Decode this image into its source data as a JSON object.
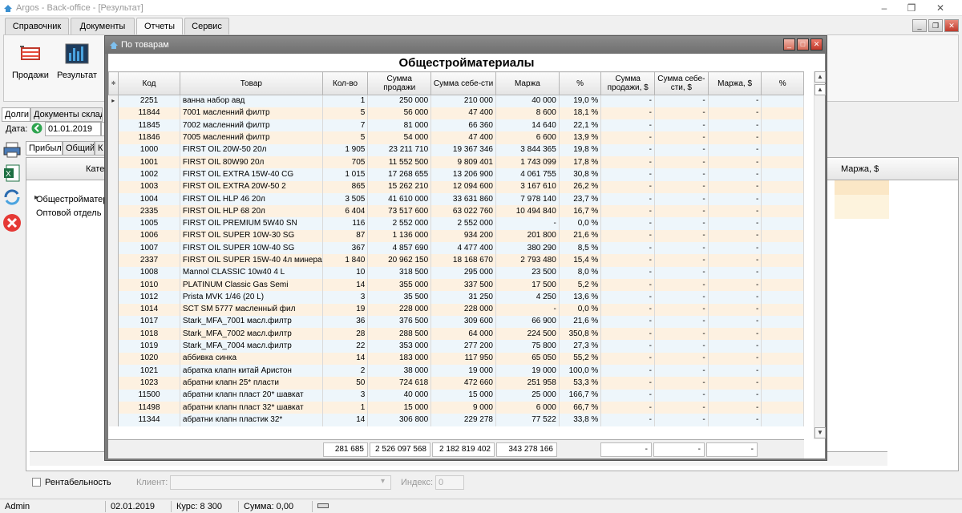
{
  "app": {
    "title": "Argos - Back-office - [Результат]"
  },
  "menu": {
    "tabs": [
      "Справочник",
      "Документы",
      "Отчеты",
      "Сервис"
    ],
    "active": "Отчеты"
  },
  "ribbon": {
    "buttons": [
      {
        "label": "Продажи",
        "icon": "cart-icon"
      },
      {
        "label": "Результат",
        "icon": "bar-chart-icon"
      }
    ]
  },
  "left": {
    "tab_debts": "Долги",
    "tab_stock_docs": "Документы склада",
    "date_label": "Дата:",
    "date_value": "01.01.2019",
    "subtabs": [
      "Прибыль",
      "Общий",
      "К"
    ],
    "grid_header_category": "Кате",
    "grid_header_margin_usd": "Маржа, $",
    "rows": [
      "Общестройматериа",
      "Оптовой отдель"
    ]
  },
  "bottom": {
    "rentability_label": "Рентабельность",
    "client_label": "Клиент:",
    "index_label": "Индекс:",
    "index_value": "0"
  },
  "status": {
    "user": "Admin",
    "date": "02.01.2019",
    "rate": "Курс: 8 300",
    "sum": "Сумма: 0,00"
  },
  "modal": {
    "title": "По товарам",
    "report_title": "Общестройматериалы",
    "columns": [
      "Код",
      "Товар",
      "Кол-во",
      "Сумма продажи",
      "Сумма себе-сти",
      "Маржа",
      "%",
      "Сумма продажи, $",
      "Сумма себе-сти, $",
      "Маржа, $",
      "%"
    ],
    "rows": [
      [
        "2251",
        "ванна набор авд",
        "1",
        "250 000",
        "210 000",
        "40 000",
        "19,0 %",
        "-",
        "-",
        "-",
        ""
      ],
      [
        "11844",
        "7001 масленний филтр",
        "5",
        "56 000",
        "47 400",
        "8 600",
        "18,1 %",
        "-",
        "-",
        "-",
        ""
      ],
      [
        "11845",
        "7002 масленний филтр",
        "7",
        "81 000",
        "66 360",
        "14 640",
        "22,1 %",
        "-",
        "-",
        "-",
        ""
      ],
      [
        "11846",
        "7005 масленний филтр",
        "5",
        "54 000",
        "47 400",
        "6 600",
        "13,9 %",
        "-",
        "-",
        "-",
        ""
      ],
      [
        "1000",
        "FIRST OIL 20W-50 20л",
        "1 905",
        "23 211 710",
        "19 367 346",
        "3 844 365",
        "19,8 %",
        "-",
        "-",
        "-",
        ""
      ],
      [
        "1001",
        "FIRST OIL 80W90    20л",
        "705",
        "11 552 500",
        "9 809 401",
        "1 743 099",
        "17,8 %",
        "-",
        "-",
        "-",
        ""
      ],
      [
        "1002",
        "FIRST OIL EXTRA 15W-40 CG",
        "1 015",
        "17 268 655",
        "13 206 900",
        "4 061 755",
        "30,8 %",
        "-",
        "-",
        "-",
        ""
      ],
      [
        "1003",
        "FIRST OIL EXTRA 20W-50 2",
        "865",
        "15 262 210",
        "12 094 600",
        "3 167 610",
        "26,2 %",
        "-",
        "-",
        "-",
        ""
      ],
      [
        "1004",
        "FIRST OIL HLP 46  20л",
        "3 505",
        "41 610 000",
        "33 631 860",
        "7 978 140",
        "23,7 %",
        "-",
        "-",
        "-",
        ""
      ],
      [
        "2335",
        "FIRST OIL HLP 68  20л",
        "6 404",
        "73 517 600",
        "63 022 760",
        "10 494 840",
        "16,7 %",
        "-",
        "-",
        "-",
        ""
      ],
      [
        "1005",
        "FIRST OIL PREMIUM 5W40 SN",
        "116",
        "2 552 000",
        "2 552 000",
        "-",
        "0,0 %",
        "-",
        "-",
        "-",
        ""
      ],
      [
        "1006",
        "FIRST OIL SUPER  10W-30 SG",
        "87",
        "1 136 000",
        "934 200",
        "201 800",
        "21,6 %",
        "-",
        "-",
        "-",
        ""
      ],
      [
        "1007",
        "FIRST OIL SUPER  10W-40 SG",
        "367",
        "4 857 690",
        "4 477 400",
        "380 290",
        "8,5 %",
        "-",
        "-",
        "-",
        ""
      ],
      [
        "2337",
        "FIRST OIL SUPER 15W-40 4л минерал",
        "1 840",
        "20 962 150",
        "18 168 670",
        "2 793 480",
        "15,4 %",
        "-",
        "-",
        "-",
        ""
      ],
      [
        "1008",
        "Mannol CLASSIC 10w40  4 L",
        "10",
        "318 500",
        "295 000",
        "23 500",
        "8,0 %",
        "-",
        "-",
        "-",
        ""
      ],
      [
        "1010",
        "PLATINUM Classic Gas Semi",
        "14",
        "355 000",
        "337 500",
        "17 500",
        "5,2 %",
        "-",
        "-",
        "-",
        ""
      ],
      [
        "1012",
        "Prista MVK 1/46 (20 L)",
        "3",
        "35 500",
        "31 250",
        "4 250",
        "13,6 %",
        "-",
        "-",
        "-",
        ""
      ],
      [
        "1014",
        "SCT SM 5777 масленный фил",
        "19",
        "228 000",
        "228 000",
        "-",
        "0,0 %",
        "-",
        "-",
        "-",
        ""
      ],
      [
        "1017",
        "Stark_MFA_7001 масл.филтр",
        "36",
        "376 500",
        "309 600",
        "66 900",
        "21,6 %",
        "-",
        "-",
        "-",
        ""
      ],
      [
        "1018",
        "Stark_MFA_7002 масл.филтр",
        "28",
        "288 500",
        "64 000",
        "224 500",
        "350,8 %",
        "-",
        "-",
        "-",
        ""
      ],
      [
        "1019",
        "Stark_MFA_7004 масл.филтр",
        "22",
        "353 000",
        "277 200",
        "75 800",
        "27,3 %",
        "-",
        "-",
        "-",
        ""
      ],
      [
        "1020",
        "аббивка синка",
        "14",
        "183 000",
        "117 950",
        "65 050",
        "55,2 %",
        "-",
        "-",
        "-",
        ""
      ],
      [
        "1021",
        "абратка клапн китай Аристон",
        "2",
        "38 000",
        "19 000",
        "19 000",
        "100,0 %",
        "-",
        "-",
        "-",
        ""
      ],
      [
        "1023",
        "абратни клапн 25* пласти",
        "50",
        "724 618",
        "472 660",
        "251 958",
        "53,3 %",
        "-",
        "-",
        "-",
        ""
      ],
      [
        "11500",
        "абратни клапн пласт 20* шавкат",
        "3",
        "40 000",
        "15 000",
        "25 000",
        "166,7 %",
        "-",
        "-",
        "-",
        ""
      ],
      [
        "11498",
        "абратни клапн пласт 32* шавкат",
        "1",
        "15 000",
        "9 000",
        "6 000",
        "66,7 %",
        "-",
        "-",
        "-",
        ""
      ],
      [
        "11344",
        "абратни клапн пластик 32*",
        "14",
        "306 800",
        "229 278",
        "77 522",
        "33,8 %",
        "-",
        "-",
        "-",
        ""
      ]
    ],
    "totals": [
      "281 685",
      "2 526 097 568",
      "2 182 819 402",
      "343 278 166",
      "-",
      "-",
      "-"
    ]
  }
}
